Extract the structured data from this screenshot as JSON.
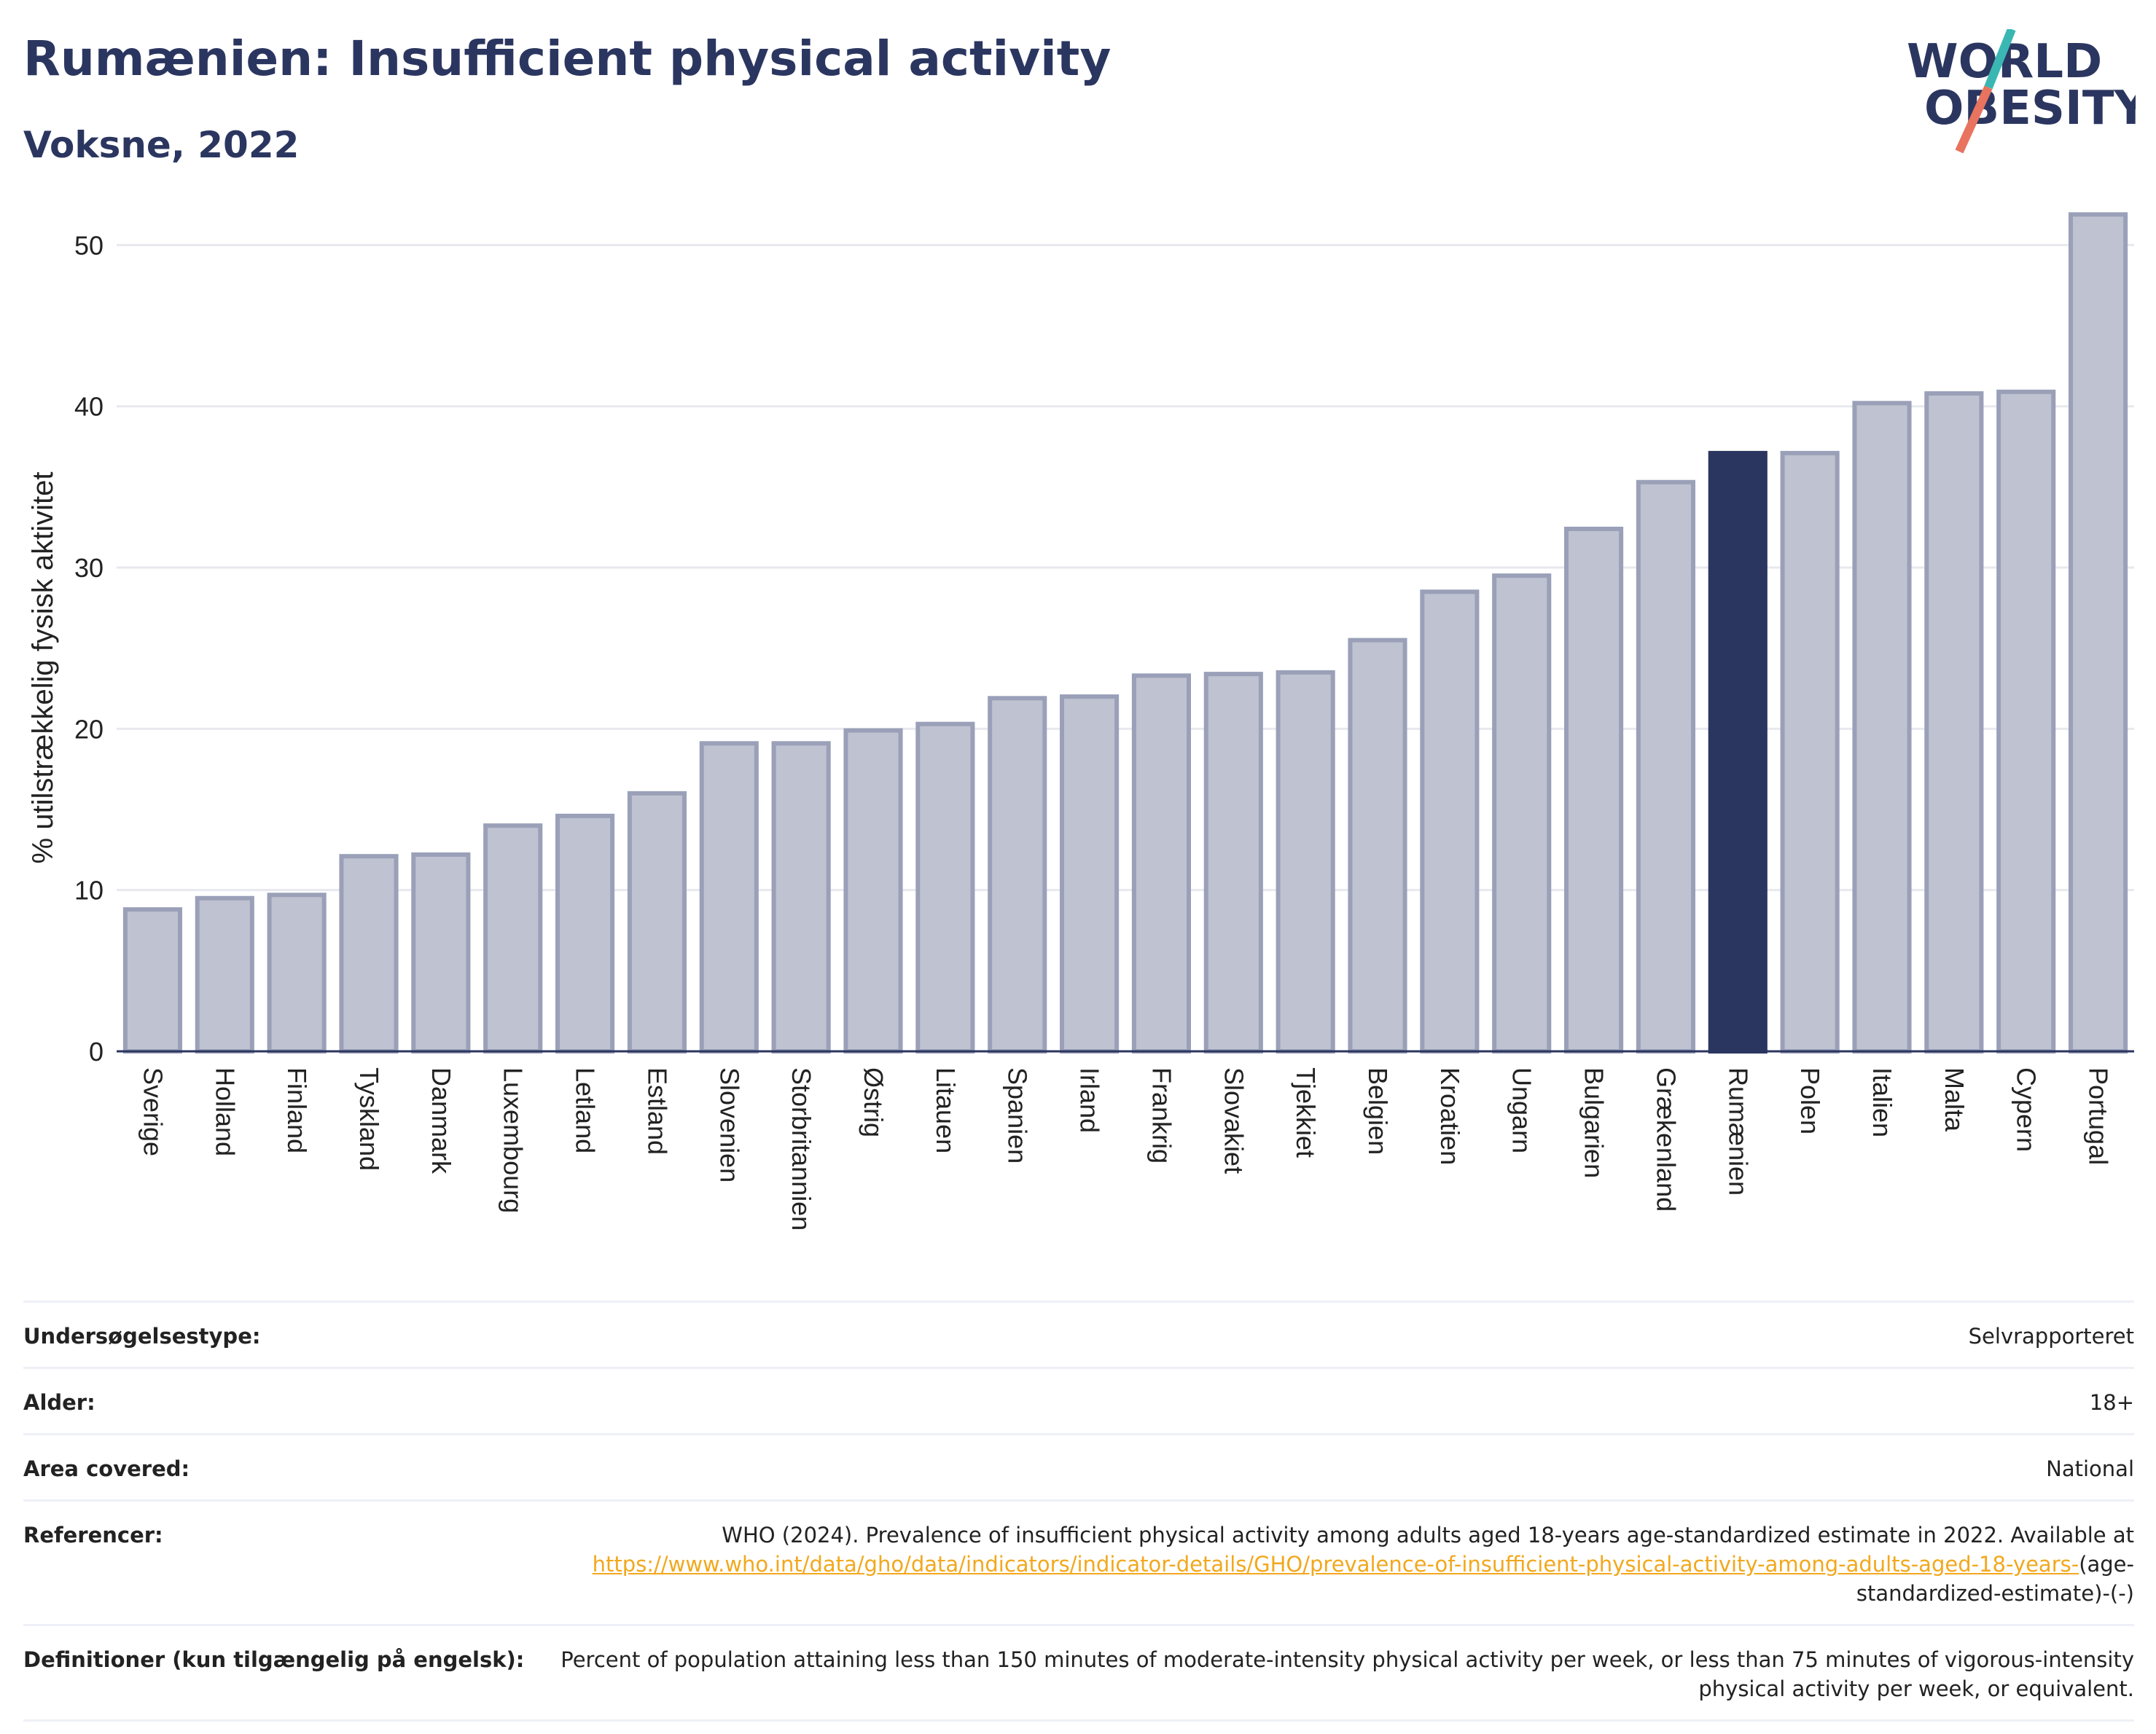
{
  "header": {
    "title": "Rumænien: Insufficient physical activity",
    "subtitle": "Voksne, 2022"
  },
  "logo": {
    "line1": "WORLD",
    "line2": "OBESITY"
  },
  "colors": {
    "bar": "#bfc2d0",
    "bar_edge": "#9aa0b8",
    "highlight": "#2b3660",
    "grid": "#e8e9ef",
    "axis": "#2b3660",
    "link": "#f2a81d"
  },
  "chart_data": {
    "type": "bar",
    "ylabel": "% utilstrækkelig fysisk aktivitet",
    "ylim": [
      0,
      53
    ],
    "yticks": [
      0,
      10,
      20,
      30,
      40,
      50
    ],
    "grid": true,
    "highlight": "Rumænien",
    "categories": [
      "Sverige",
      "Holland",
      "Finland",
      "Tyskland",
      "Danmark",
      "Luxembourg",
      "Letland",
      "Estland",
      "Slovenien",
      "Storbritannien",
      "Østrig",
      "Litauen",
      "Spanien",
      "Irland",
      "Frankrig",
      "Slovakiet",
      "Tjekkiet",
      "Belgien",
      "Kroatien",
      "Ungarn",
      "Bulgarien",
      "Grækenland",
      "Rumænien",
      "Polen",
      "Italien",
      "Malta",
      "Cypern",
      "Portugal"
    ],
    "values": [
      8.8,
      9.5,
      9.7,
      12.1,
      12.2,
      14.0,
      14.6,
      16.0,
      19.1,
      19.1,
      19.9,
      20.3,
      21.9,
      22.0,
      23.3,
      23.4,
      23.5,
      25.5,
      28.5,
      29.5,
      32.4,
      35.3,
      37.1,
      37.1,
      40.2,
      40.8,
      40.9,
      51.9
    ]
  },
  "meta": [
    {
      "label": "Undersøgelsestype:",
      "value": "Selvrapporteret"
    },
    {
      "label": "Alder:",
      "value": "18+"
    },
    {
      "label": "Area covered:",
      "value": "National"
    },
    {
      "label": "Referencer:",
      "value_pre": "WHO (2024). Prevalence of insufficient physical activity among adults aged 18-years age-standardized estimate in 2022. Available at",
      "link": "https://www.who.int/data/gho/data/indicators/indicator-details/GHO/prevalence-of-insufficient-physical-activity-among-adults-aged-18-years-",
      "value_post": "(age-standardized-estimate)-(-)"
    },
    {
      "label": "Definitioner (kun tilgængelig på engelsk):",
      "value": "Percent of population attaining less than 150 minutes of moderate-intensity physical activity per week, or less than 75 minutes of vigorous-intensity physical activity per week, or equivalent."
    }
  ]
}
